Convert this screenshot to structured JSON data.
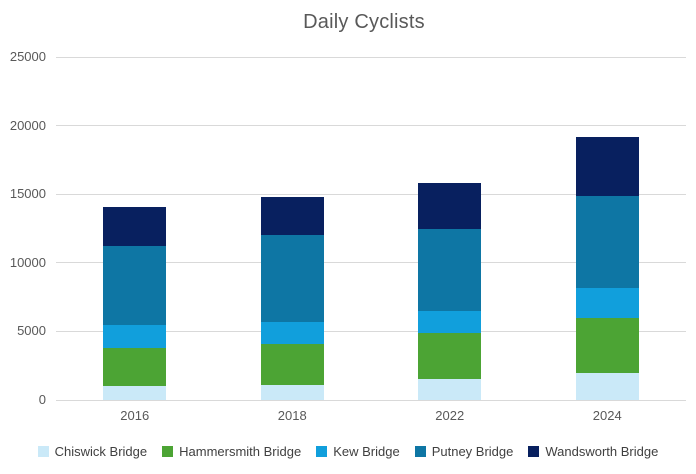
{
  "title": "Daily Cyclists",
  "chart_data": {
    "type": "bar",
    "stacked": true,
    "title": "Daily Cyclists",
    "xlabel": "",
    "ylabel": "",
    "categories": [
      "2016",
      "2018",
      "2022",
      "2024"
    ],
    "series": [
      {
        "name": "Chiswick Bridge",
        "color": "#cae9f8",
        "values": [
          1000,
          1100,
          1500,
          2000
        ]
      },
      {
        "name": "Hammersmith Bridge",
        "color": "#4ca434",
        "values": [
          2800,
          3000,
          3400,
          4000
        ]
      },
      {
        "name": "Kew Bridge",
        "color": "#119fdc",
        "values": [
          1700,
          1600,
          1600,
          2200
        ]
      },
      {
        "name": "Putney Bridge",
        "color": "#0e76a4",
        "values": [
          5700,
          6300,
          6000,
          6700
        ]
      },
      {
        "name": "Wandsworth Bridge",
        "color": "#08205f",
        "values": [
          2900,
          2800,
          3300,
          4300
        ]
      }
    ],
    "totals": [
      14100,
      14800,
      15800,
      19200
    ],
    "ylim": [
      0,
      25000
    ],
    "yticks": [
      0,
      5000,
      10000,
      15000,
      20000,
      25000
    ],
    "grid": true,
    "legend_position": "bottom"
  },
  "style": {
    "gridline_color": "#d9d9d9",
    "axis_text_color": "#595959",
    "title_color": "#595959",
    "legend_text_color": "#404040",
    "background": "#ffffff"
  }
}
